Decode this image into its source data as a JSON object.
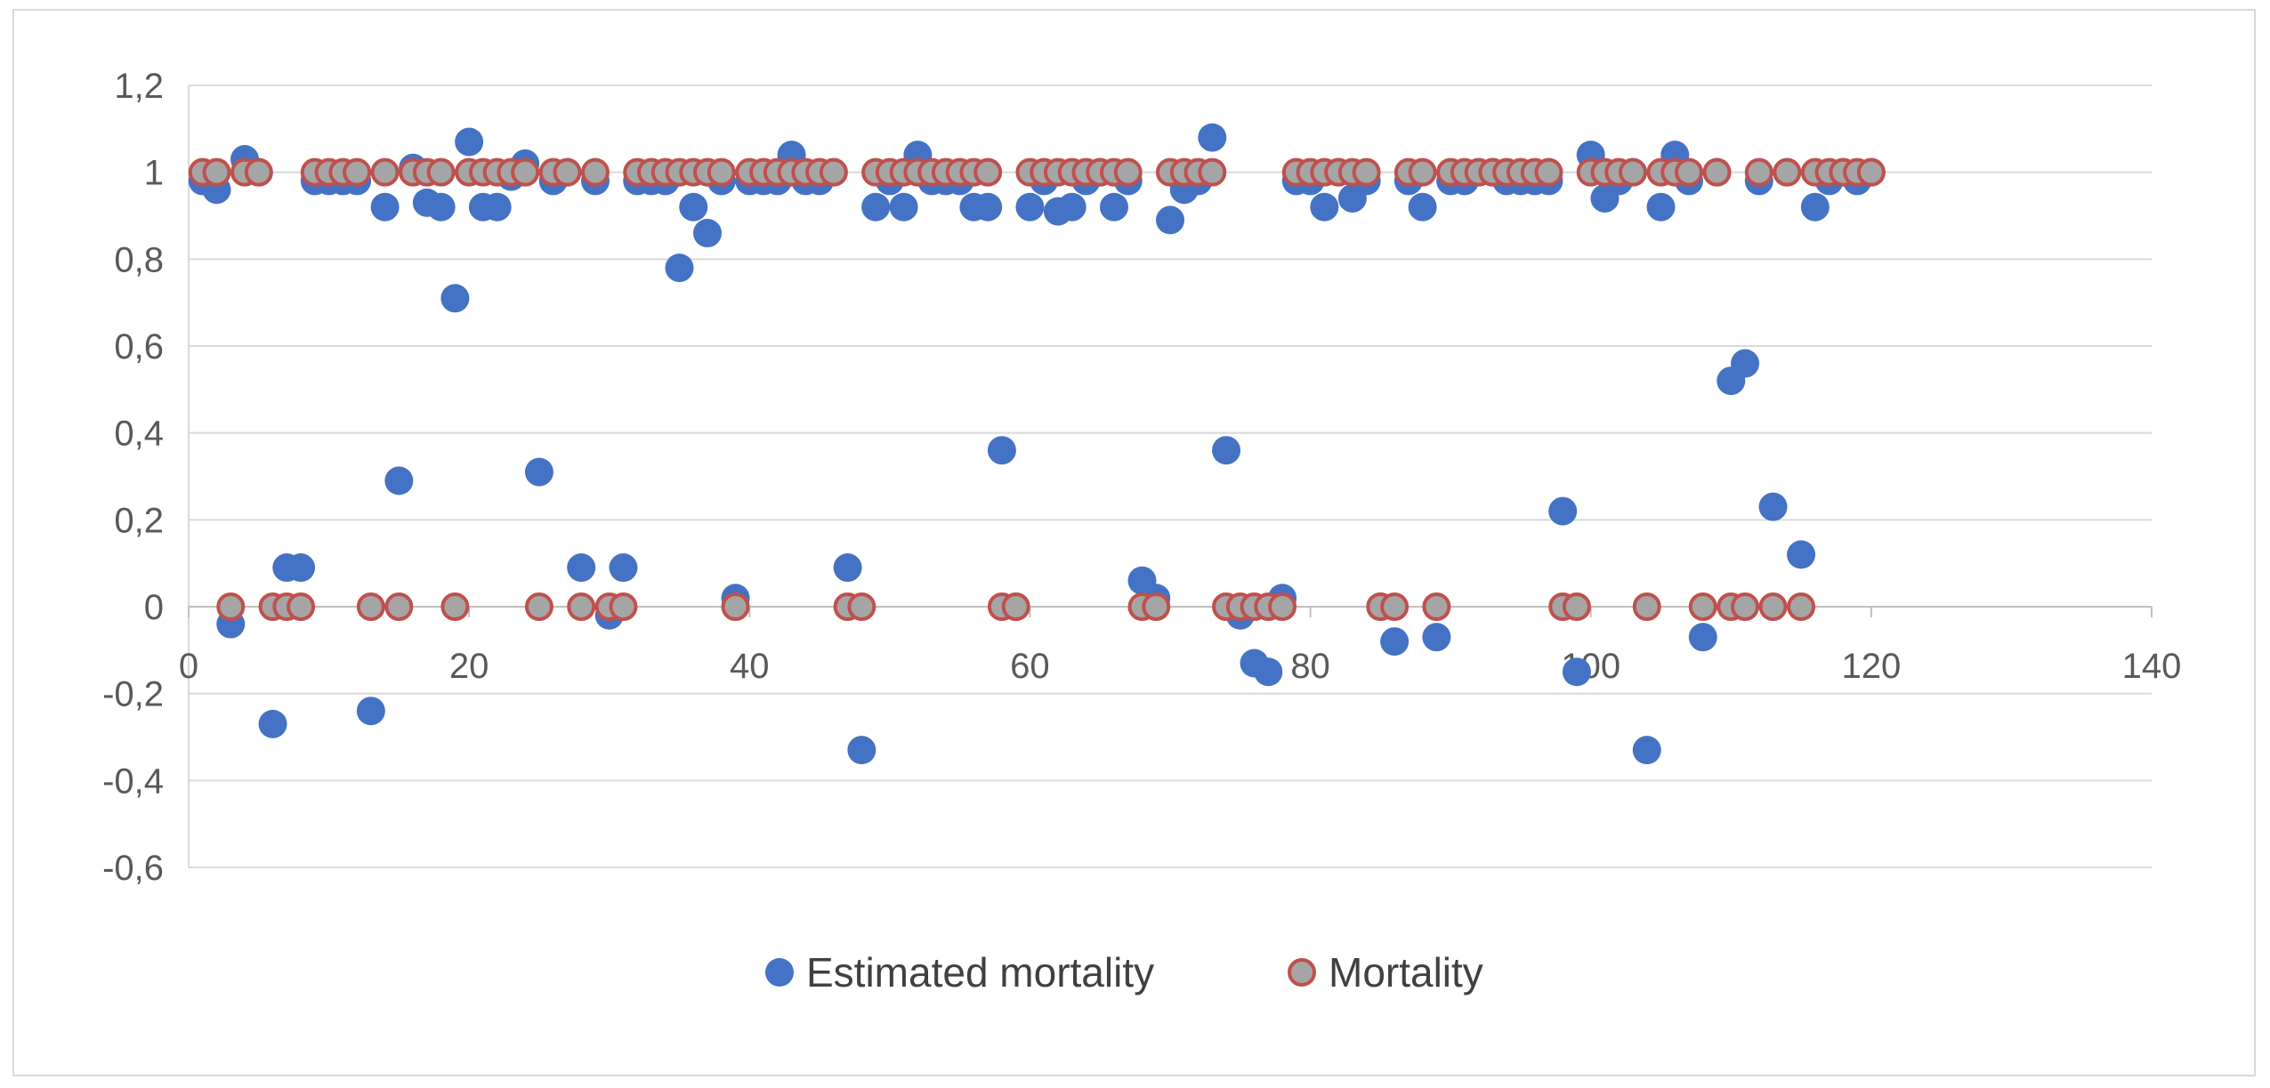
{
  "chart_data": {
    "type": "scatter",
    "title": "",
    "xlabel": "",
    "ylabel": "",
    "xlim": [
      0,
      140
    ],
    "ylim": [
      -0.6,
      1.2
    ],
    "x_ticks": [
      0,
      20,
      40,
      60,
      80,
      100,
      120,
      140
    ],
    "x_tick_labels": [
      "0",
      "20",
      "40",
      "60",
      "80",
      "100",
      "120",
      "140"
    ],
    "y_ticks": [
      -0.6,
      -0.4,
      -0.2,
      0,
      0.2,
      0.4,
      0.6,
      0.8,
      1,
      1.2
    ],
    "y_tick_labels": [
      "-0,6",
      "-0,4",
      "-0,2",
      "0",
      "0,2",
      "0,4",
      "0,6",
      "0,8",
      "1",
      "1,2"
    ],
    "grid": "horizontal",
    "legend_position": "bottom-center",
    "series": [
      {
        "name": "Estimated mortality",
        "color": "#4472c4",
        "x": [
          1,
          2,
          3,
          4,
          5,
          6,
          7,
          8,
          9,
          10,
          11,
          12,
          13,
          14,
          15,
          16,
          17,
          18,
          19,
          20,
          21,
          22,
          23,
          24,
          25,
          26,
          27,
          28,
          29,
          30,
          31,
          32,
          33,
          34,
          35,
          36,
          37,
          38,
          39,
          40,
          41,
          42,
          43,
          44,
          45,
          46,
          47,
          48,
          49,
          50,
          51,
          52,
          53,
          54,
          55,
          56,
          57,
          58,
          59,
          60,
          61,
          62,
          63,
          64,
          65,
          66,
          67,
          68,
          69,
          70,
          71,
          72,
          73,
          74,
          75,
          76,
          77,
          78,
          79,
          80,
          81,
          82,
          83,
          84,
          85,
          86,
          87,
          88,
          89,
          90,
          91,
          92,
          93,
          94,
          95,
          96,
          97,
          98,
          99,
          100,
          101,
          102,
          103,
          104,
          105,
          106,
          107,
          108,
          109,
          110,
          111,
          112,
          113,
          114,
          115,
          116,
          117,
          118,
          119,
          120
        ],
        "y": [
          0.98,
          0.96,
          -0.04,
          1.03,
          1.0,
          -0.27,
          0.09,
          0.09,
          0.98,
          0.98,
          0.98,
          0.98,
          -0.24,
          0.92,
          0.29,
          1.01,
          0.93,
          0.92,
          0.71,
          1.07,
          0.92,
          0.92,
          0.99,
          1.02,
          0.31,
          0.98,
          1.0,
          0.09,
          0.98,
          -0.02,
          0.09,
          0.98,
          0.98,
          0.98,
          0.78,
          0.92,
          0.86,
          0.98,
          0.02,
          0.98,
          0.98,
          0.98,
          1.04,
          0.98,
          0.98,
          1.0,
          0.09,
          -0.33,
          0.92,
          0.98,
          0.92,
          1.04,
          0.98,
          0.98,
          0.98,
          0.92,
          0.92,
          0.36,
          0.0,
          0.92,
          0.98,
          0.91,
          0.92,
          0.98,
          1.0,
          0.92,
          0.98,
          0.06,
          0.02,
          0.89,
          0.96,
          0.98,
          1.08,
          0.36,
          -0.02,
          -0.13,
          -0.15,
          0.02,
          0.98,
          0.98,
          0.92,
          1.0,
          0.94,
          0.98,
          0.0,
          -0.08,
          0.98,
          0.92,
          -0.07,
          0.98,
          0.98,
          1.0,
          1.0,
          0.98,
          0.98,
          0.98,
          0.98,
          0.22,
          -0.15,
          1.04,
          0.94,
          0.98,
          1.0,
          -0.33,
          0.92,
          1.04,
          0.98,
          -0.07,
          1.0,
          0.52,
          0.56,
          0.98,
          0.23,
          1.0,
          0.12,
          0.92,
          0.98,
          1.0,
          0.98,
          1.0
        ]
      },
      {
        "name": "Mortality",
        "color": "#a5a5a5",
        "edgecolor": "#c0504d",
        "x": [
          1,
          2,
          3,
          4,
          5,
          6,
          7,
          8,
          9,
          10,
          11,
          12,
          13,
          14,
          15,
          16,
          17,
          18,
          19,
          20,
          21,
          22,
          23,
          24,
          25,
          26,
          27,
          28,
          29,
          30,
          31,
          32,
          33,
          34,
          35,
          36,
          37,
          38,
          39,
          40,
          41,
          42,
          43,
          44,
          45,
          46,
          47,
          48,
          49,
          50,
          51,
          52,
          53,
          54,
          55,
          56,
          57,
          58,
          59,
          60,
          61,
          62,
          63,
          64,
          65,
          66,
          67,
          68,
          69,
          70,
          71,
          72,
          73,
          74,
          75,
          76,
          77,
          78,
          79,
          80,
          81,
          82,
          83,
          84,
          85,
          86,
          87,
          88,
          89,
          90,
          91,
          92,
          93,
          94,
          95,
          96,
          97,
          98,
          99,
          100,
          101,
          102,
          103,
          104,
          105,
          106,
          107,
          108,
          109,
          110,
          111,
          112,
          113,
          114,
          115,
          116,
          117,
          118,
          119,
          120
        ],
        "y": [
          1,
          1,
          0,
          1,
          1,
          0,
          0,
          0,
          1,
          1,
          1,
          1,
          0,
          1,
          0,
          1,
          1,
          1,
          0,
          1,
          1,
          1,
          1,
          1,
          0,
          1,
          1,
          0,
          1,
          0,
          0,
          1,
          1,
          1,
          1,
          1,
          1,
          1,
          0,
          1,
          1,
          1,
          1,
          1,
          1,
          1,
          0,
          0,
          1,
          1,
          1,
          1,
          1,
          1,
          1,
          1,
          1,
          0,
          0,
          1,
          1,
          1,
          1,
          1,
          1,
          1,
          1,
          0,
          0,
          1,
          1,
          1,
          1,
          0,
          0,
          0,
          0,
          0,
          1,
          1,
          1,
          1,
          1,
          1,
          0,
          0,
          1,
          1,
          0,
          1,
          1,
          1,
          1,
          1,
          1,
          1,
          1,
          0,
          0,
          1,
          1,
          1,
          1,
          0,
          1,
          1,
          1,
          0,
          1,
          0,
          0,
          1,
          0,
          1,
          0,
          1,
          1,
          1,
          1,
          1
        ]
      }
    ]
  }
}
